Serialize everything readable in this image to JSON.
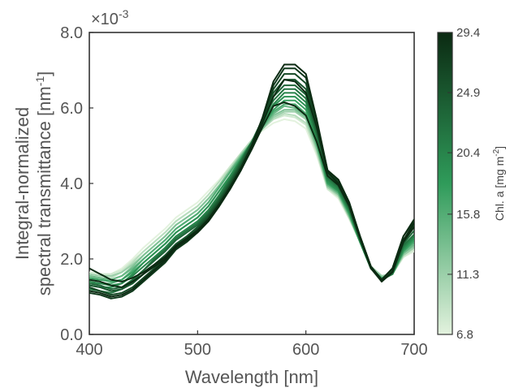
{
  "chart_data": {
    "type": "line",
    "xlabel": "Wavelength [nm]",
    "ylabel_line1": "Integral-normalized",
    "ylabel_line2": "spectral transmittance [nm",
    "ylabel_sup": "-1",
    "ylabel_close": "]",
    "exponent_label": "×10",
    "exponent_sup": "-3",
    "xlim": [
      400,
      700
    ],
    "ylim": [
      0,
      8.0
    ],
    "y_scale_note": "×10^-3",
    "x_ticks": [
      "400",
      "500",
      "600",
      "700"
    ],
    "y_ticks": [
      "0.0",
      "2.0",
      "4.0",
      "6.0",
      "8.0"
    ],
    "colorbar": {
      "label": "Chl.  a [mg m",
      "label_sup": "-2",
      "label_close": "]",
      "range": [
        6.8,
        29.4
      ],
      "ticks": [
        "6.8",
        "11.3",
        "15.8",
        "20.4",
        "24.9",
        "29.4"
      ],
      "color_low": "#e3f2de",
      "color_mid": "#2f9b5a",
      "color_high": "#0b2a12"
    },
    "x": [
      400,
      410,
      420,
      430,
      440,
      450,
      460,
      470,
      480,
      490,
      500,
      510,
      520,
      530,
      540,
      550,
      560,
      570,
      580,
      590,
      600,
      610,
      620,
      630,
      640,
      650,
      660,
      670,
      680,
      690,
      700
    ],
    "series": [
      {
        "chl": 29.4,
        "values": [
          1.15,
          1.1,
          1.0,
          1.05,
          1.2,
          1.45,
          1.7,
          1.95,
          2.3,
          2.5,
          2.75,
          3.05,
          3.45,
          3.9,
          4.4,
          5.0,
          5.75,
          6.7,
          7.15,
          7.15,
          6.9,
          5.7,
          4.35,
          4.1,
          3.5,
          2.6,
          1.8,
          1.45,
          1.75,
          2.6,
          3.05
        ]
      },
      {
        "chl": 29.4,
        "values": [
          1.45,
          1.4,
          1.3,
          1.25,
          1.4,
          1.6,
          1.8,
          2.0,
          2.3,
          2.5,
          2.7,
          3.0,
          3.4,
          3.85,
          4.35,
          4.95,
          5.6,
          6.3,
          6.75,
          6.7,
          6.4,
          5.5,
          4.3,
          4.0,
          3.45,
          2.6,
          1.8,
          1.4,
          1.65,
          2.45,
          2.85
        ]
      },
      {
        "chl": 28.0,
        "values": [
          1.1,
          1.05,
          0.95,
          1.0,
          1.15,
          1.4,
          1.65,
          1.9,
          2.25,
          2.45,
          2.7,
          3.0,
          3.4,
          3.85,
          4.4,
          5.0,
          5.7,
          6.6,
          7.05,
          7.05,
          6.8,
          5.65,
          4.35,
          4.1,
          3.5,
          2.6,
          1.8,
          1.45,
          1.75,
          2.6,
          3.0
        ]
      },
      {
        "chl": 26.5,
        "values": [
          1.25,
          1.15,
          1.05,
          1.1,
          1.25,
          1.5,
          1.75,
          2.0,
          2.35,
          2.55,
          2.8,
          3.1,
          3.5,
          3.95,
          4.45,
          5.0,
          5.7,
          6.5,
          6.9,
          6.9,
          6.65,
          5.55,
          4.3,
          4.05,
          3.45,
          2.6,
          1.8,
          1.45,
          1.7,
          2.5,
          2.9
        ]
      },
      {
        "chl": 25.0,
        "values": [
          1.3,
          1.25,
          1.15,
          1.2,
          1.35,
          1.6,
          1.85,
          2.1,
          2.4,
          2.6,
          2.85,
          3.15,
          3.55,
          4.0,
          4.5,
          5.05,
          5.7,
          6.4,
          6.75,
          6.75,
          6.5,
          5.45,
          4.25,
          4.0,
          3.4,
          2.55,
          1.75,
          1.45,
          1.7,
          2.45,
          2.85
        ]
      },
      {
        "chl": 23.5,
        "values": [
          1.35,
          1.3,
          1.2,
          1.25,
          1.45,
          1.7,
          1.95,
          2.2,
          2.5,
          2.7,
          2.9,
          3.2,
          3.6,
          4.05,
          4.55,
          5.1,
          5.7,
          6.3,
          6.6,
          6.6,
          6.35,
          5.35,
          4.2,
          3.95,
          3.35,
          2.5,
          1.75,
          1.45,
          1.65,
          2.4,
          2.75
        ]
      },
      {
        "chl": 22.0,
        "values": [
          1.2,
          1.15,
          1.1,
          1.2,
          1.4,
          1.7,
          2.0,
          2.25,
          2.55,
          2.75,
          2.95,
          3.25,
          3.65,
          4.1,
          4.6,
          5.1,
          5.7,
          6.2,
          6.5,
          6.5,
          6.25,
          5.3,
          4.15,
          3.9,
          3.3,
          2.5,
          1.75,
          1.45,
          1.6,
          2.35,
          2.65
        ]
      },
      {
        "chl": 20.4,
        "values": [
          1.4,
          1.35,
          1.3,
          1.35,
          1.55,
          1.8,
          2.05,
          2.3,
          2.6,
          2.8,
          3.0,
          3.3,
          3.7,
          4.15,
          4.6,
          5.1,
          5.65,
          6.1,
          6.4,
          6.4,
          6.15,
          5.2,
          4.1,
          3.85,
          3.3,
          2.5,
          1.75,
          1.45,
          1.6,
          2.3,
          2.6
        ]
      },
      {
        "chl": 19.0,
        "values": [
          1.3,
          1.25,
          1.25,
          1.35,
          1.6,
          1.9,
          2.15,
          2.4,
          2.7,
          2.9,
          3.1,
          3.4,
          3.8,
          4.2,
          4.65,
          5.1,
          5.6,
          6.05,
          6.3,
          6.3,
          6.05,
          5.15,
          4.05,
          3.8,
          3.25,
          2.45,
          1.75,
          1.45,
          1.6,
          2.25,
          2.55
        ]
      },
      {
        "chl": 17.5,
        "values": [
          1.5,
          1.45,
          1.4,
          1.45,
          1.65,
          1.9,
          2.15,
          2.4,
          2.7,
          2.9,
          3.1,
          3.4,
          3.8,
          4.2,
          4.65,
          5.1,
          5.55,
          5.95,
          6.2,
          6.2,
          5.95,
          5.1,
          4.0,
          3.8,
          3.2,
          2.45,
          1.75,
          1.5,
          1.6,
          2.2,
          2.5
        ]
      },
      {
        "chl": 16.0,
        "values": [
          1.35,
          1.35,
          1.35,
          1.45,
          1.7,
          2.0,
          2.25,
          2.5,
          2.8,
          3.0,
          3.2,
          3.5,
          3.9,
          4.3,
          4.7,
          5.1,
          5.5,
          5.9,
          6.1,
          6.1,
          5.85,
          5.05,
          4.0,
          3.75,
          3.2,
          2.45,
          1.75,
          1.5,
          1.6,
          2.2,
          2.45
        ]
      },
      {
        "chl": 14.5,
        "values": [
          1.55,
          1.5,
          1.45,
          1.55,
          1.75,
          2.0,
          2.25,
          2.5,
          2.8,
          3.0,
          3.2,
          3.5,
          3.9,
          4.3,
          4.7,
          5.1,
          5.5,
          5.85,
          6.05,
          6.0,
          5.8,
          5.0,
          3.95,
          3.75,
          3.15,
          2.45,
          1.75,
          1.5,
          1.6,
          2.15,
          2.4
        ]
      },
      {
        "chl": 13.0,
        "values": [
          1.45,
          1.45,
          1.45,
          1.55,
          1.8,
          2.1,
          2.35,
          2.6,
          2.9,
          3.1,
          3.3,
          3.6,
          3.95,
          4.35,
          4.75,
          5.1,
          5.45,
          5.8,
          5.95,
          5.95,
          5.75,
          4.95,
          3.95,
          3.7,
          3.15,
          2.45,
          1.75,
          1.5,
          1.6,
          2.15,
          2.35
        ]
      },
      {
        "chl": 11.3,
        "values": [
          1.6,
          1.55,
          1.55,
          1.65,
          1.85,
          2.1,
          2.35,
          2.6,
          2.9,
          3.1,
          3.3,
          3.6,
          3.95,
          4.35,
          4.75,
          5.1,
          5.45,
          5.75,
          5.9,
          5.9,
          5.7,
          4.9,
          3.9,
          3.7,
          3.1,
          2.45,
          1.8,
          1.55,
          1.6,
          2.1,
          2.3
        ]
      },
      {
        "chl": 9.5,
        "values": [
          1.5,
          1.5,
          1.5,
          1.65,
          1.9,
          2.2,
          2.45,
          2.7,
          3.0,
          3.2,
          3.4,
          3.7,
          4.05,
          4.4,
          4.8,
          5.15,
          5.45,
          5.7,
          5.85,
          5.8,
          5.6,
          4.85,
          3.9,
          3.65,
          3.1,
          2.45,
          1.8,
          1.55,
          1.6,
          2.1,
          2.3
        ]
      },
      {
        "chl": 8.0,
        "values": [
          1.65,
          1.6,
          1.6,
          1.7,
          1.95,
          2.2,
          2.45,
          2.7,
          3.0,
          3.2,
          3.4,
          3.7,
          4.05,
          4.45,
          4.8,
          5.15,
          5.45,
          5.7,
          5.8,
          5.75,
          5.55,
          4.8,
          3.85,
          3.65,
          3.1,
          2.45,
          1.8,
          1.55,
          1.6,
          2.05,
          2.25
        ]
      },
      {
        "chl": 6.8,
        "values": [
          1.55,
          1.55,
          1.6,
          1.75,
          2.0,
          2.3,
          2.55,
          2.8,
          3.1,
          3.3,
          3.5,
          3.8,
          4.1,
          4.45,
          4.8,
          5.15,
          5.4,
          5.6,
          5.7,
          5.65,
          5.45,
          4.75,
          3.85,
          3.6,
          3.05,
          2.45,
          1.8,
          1.55,
          1.6,
          2.05,
          2.2
        ]
      },
      {
        "chl": 29.4,
        "values": [
          1.75,
          1.6,
          1.45,
          1.4,
          1.5,
          1.65,
          1.85,
          2.05,
          2.35,
          2.55,
          2.75,
          3.05,
          3.45,
          3.85,
          4.35,
          4.9,
          5.5,
          6.05,
          6.15,
          6.05,
          5.8,
          5.1,
          4.2,
          3.95,
          3.4,
          2.55,
          1.75,
          1.4,
          1.65,
          2.5,
          2.95
        ]
      }
    ]
  }
}
